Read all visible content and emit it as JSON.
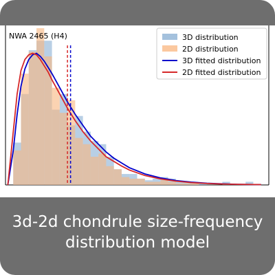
{
  "caption": {
    "line1": "3d-2d chondrule size-frequency",
    "line2": "distribution model"
  },
  "chart_data": {
    "type": "bar",
    "annotation": "NWA 2465 (H4)",
    "legend_position": "top-right",
    "xlim": [
      0,
      34
    ],
    "ylim": [
      0,
      1.0
    ],
    "bin_edges": [
      0,
      1,
      2,
      3,
      4,
      5,
      6,
      7,
      8,
      9,
      10,
      11,
      12,
      13,
      14,
      15,
      16,
      17,
      18,
      19,
      20,
      21,
      22,
      23,
      24,
      25,
      26,
      27,
      28,
      29,
      30,
      31,
      32,
      33,
      34
    ],
    "series": [
      {
        "name": "3D distribution",
        "kind": "histogram",
        "color": "#7da7cf",
        "opacity": 0.55,
        "values": [
          0.0,
          0.27,
          0.58,
          0.86,
          0.92,
          0.92,
          0.48,
          0.58,
          0.38,
          0.44,
          0.34,
          0.28,
          0.26,
          0.18,
          0.1,
          0.07,
          0.07,
          0.04,
          0.03,
          0.04,
          0.05,
          0.04,
          0.02,
          0.02,
          0.01,
          0.01,
          0.0,
          0.0,
          0.02,
          0.0,
          0.0,
          0.02,
          0.0,
          0.0
        ]
      },
      {
        "name": "2D distribution",
        "kind": "histogram",
        "color": "#f9b57f",
        "opacity": 0.6,
        "values": [
          0.0,
          0.22,
          0.71,
          0.85,
          1.0,
          0.82,
          0.62,
          0.46,
          0.54,
          0.3,
          0.26,
          0.18,
          0.2,
          0.12,
          0.1,
          0.05,
          0.04,
          0.04,
          0.02,
          0.02,
          0.03,
          0.02,
          0.01,
          0.01,
          0.01,
          0.0,
          0.0,
          0.0,
          0.0,
          0.0,
          0.0,
          0.0,
          0.0,
          0.0
        ]
      },
      {
        "name": "3D fitted distribution",
        "kind": "curve",
        "color": "#0000cc",
        "x": [
          0.3,
          1,
          1.5,
          2,
          2.5,
          3,
          3.5,
          4,
          4.5,
          5,
          5.5,
          6,
          7,
          8,
          9,
          10,
          11,
          12,
          13,
          14,
          15,
          16,
          18,
          20,
          22,
          24,
          26,
          28,
          30,
          33
        ],
        "y": [
          0.0,
          0.22,
          0.45,
          0.63,
          0.74,
          0.8,
          0.83,
          0.84,
          0.82,
          0.79,
          0.75,
          0.71,
          0.62,
          0.53,
          0.45,
          0.38,
          0.31,
          0.26,
          0.21,
          0.17,
          0.14,
          0.11,
          0.07,
          0.045,
          0.028,
          0.018,
          0.011,
          0.007,
          0.004,
          0.002
        ]
      },
      {
        "name": "2D fitted distribution",
        "kind": "curve",
        "color": "#d62728",
        "x": [
          0.3,
          1,
          1.5,
          2,
          2.5,
          3,
          3.5,
          4,
          4.5,
          5,
          5.5,
          6,
          7,
          8,
          9,
          10,
          11,
          12,
          13,
          14,
          15,
          16,
          18,
          20,
          22,
          24,
          26,
          28,
          30,
          33
        ],
        "y": [
          0.0,
          0.34,
          0.58,
          0.73,
          0.8,
          0.83,
          0.84,
          0.83,
          0.8,
          0.76,
          0.72,
          0.67,
          0.58,
          0.49,
          0.41,
          0.34,
          0.28,
          0.23,
          0.18,
          0.15,
          0.12,
          0.095,
          0.06,
          0.038,
          0.024,
          0.015,
          0.009,
          0.006,
          0.004,
          0.002
        ]
      }
    ],
    "vlines": [
      {
        "x": 8.4,
        "color": "#0000cc",
        "style": "dashed"
      },
      {
        "x": 8.0,
        "color": "#d62728",
        "style": "dashed"
      }
    ]
  }
}
